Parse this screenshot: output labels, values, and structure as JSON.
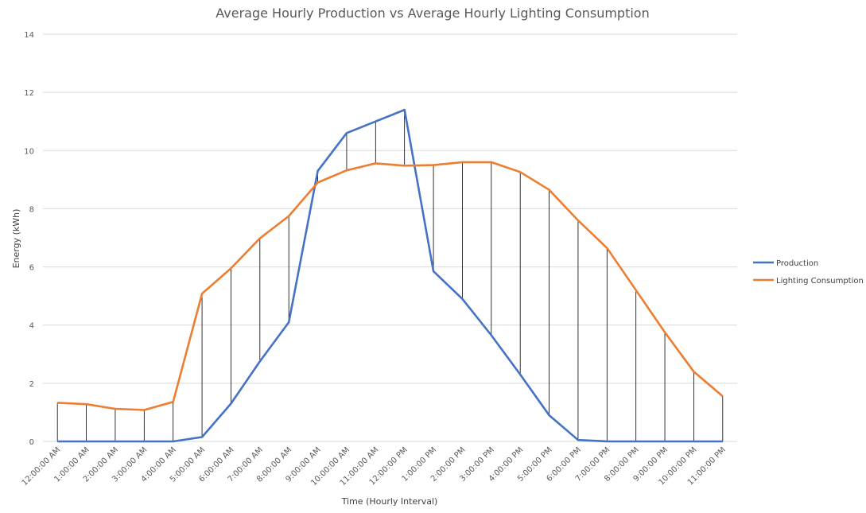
{
  "chart_data": {
    "type": "line",
    "title": "Average Hourly Production vs Average Hourly Lighting Consumption",
    "xlabel": "Time (Hourly Interval)",
    "ylabel": "Energy (kWh)",
    "ylim": [
      0,
      14
    ],
    "yticks": [
      "0",
      "2",
      "4",
      "6",
      "8",
      "10",
      "12",
      "14"
    ],
    "grid": true,
    "drop_lines": true,
    "legend_position": "right",
    "categories": [
      "12:00:00 AM",
      "1:00:00 AM",
      "2:00:00 AM",
      "3:00:00 AM",
      "4:00:00 AM",
      "5:00:00 AM",
      "6:00:00 AM",
      "7:00:00 AM",
      "8:00:00 AM",
      "9:00:00 AM",
      "10:00:00 AM",
      "11:00:00 AM",
      "12:00:00 PM",
      "1:00:00 PM",
      "2:00:00 PM",
      "3:00:00 PM",
      "4:00:00 PM",
      "5:00:00 PM",
      "6:00:00 PM",
      "7:00:00 PM",
      "8:00:00 PM",
      "9:00:00 PM",
      "10:00:00 PM",
      "11:00:00 PM"
    ],
    "series": [
      {
        "name": "Production",
        "color": "#4472C4",
        "values": [
          0,
          0,
          0,
          0,
          0,
          0.15,
          1.3,
          2.75,
          4.1,
          9.3,
          10.6,
          11.0,
          11.4,
          5.85,
          4.9,
          3.65,
          2.3,
          0.9,
          0.05,
          0,
          0,
          0,
          0,
          0
        ]
      },
      {
        "name": "Lighting Consumption",
        "color": "#ED7D31",
        "values": [
          1.33,
          1.28,
          1.12,
          1.08,
          1.36,
          5.08,
          5.95,
          6.98,
          7.75,
          8.9,
          9.32,
          9.56,
          9.48,
          9.5,
          9.6,
          9.6,
          9.26,
          8.65,
          7.6,
          6.65,
          5.2,
          3.75,
          2.4,
          1.55
        ]
      }
    ]
  }
}
